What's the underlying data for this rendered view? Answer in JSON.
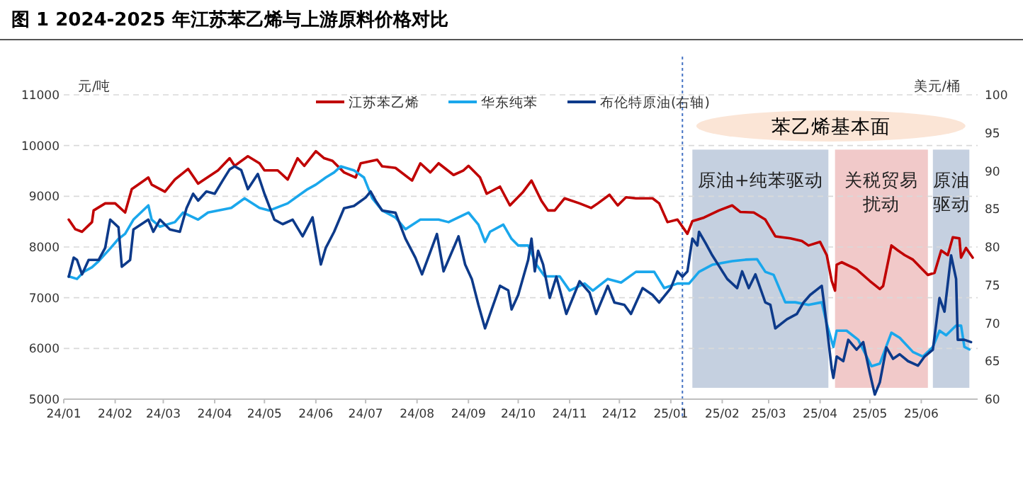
{
  "chart_data": {
    "type": "line",
    "title": "图 1 2024-2025 年江苏苯乙烯与上游原料价格对比",
    "ylabel": "元/吨",
    "y2label": "美元/桶",
    "xlim": [
      "2024-01-01",
      "2025-07-05"
    ],
    "xticks": [
      {
        "value": "2024-01",
        "label": "24/01"
      },
      {
        "value": "2024-02",
        "label": "24/02"
      },
      {
        "value": "2024-03",
        "label": "24/03"
      },
      {
        "value": "2024-04",
        "label": "24/04"
      },
      {
        "value": "2024-05",
        "label": "24/05"
      },
      {
        "value": "2024-06",
        "label": "24/06"
      },
      {
        "value": "2024-07",
        "label": "24/07"
      },
      {
        "value": "2024-08",
        "label": "24/08"
      },
      {
        "value": "2024-09",
        "label": "24/09"
      },
      {
        "value": "2024-10",
        "label": "24/10"
      },
      {
        "value": "2024-11",
        "label": "24/11"
      },
      {
        "value": "2024-12",
        "label": "24/12"
      },
      {
        "value": "2025-01",
        "label": "25/01"
      },
      {
        "value": "2025-02",
        "label": "25/02"
      },
      {
        "value": "2025-03",
        "label": "25/03"
      },
      {
        "value": "2025-04",
        "label": "25/04"
      },
      {
        "value": "2025-05",
        "label": "25/05"
      },
      {
        "value": "2025-06",
        "label": "25/06"
      }
    ],
    "ylim": [
      5000,
      11000
    ],
    "yticks": [
      5000,
      6000,
      7000,
      8000,
      9000,
      10000,
      11000
    ],
    "y2lim": [
      60,
      100
    ],
    "y2ticks": [
      60,
      65,
      70,
      75,
      80,
      85,
      90,
      95,
      100
    ],
    "grid": "y",
    "legend": "top",
    "line_style": "solid",
    "marker": "none",
    "annotations": [
      "苯乙烯基本面"
    ],
    "ref_lines": [
      {
        "axis": "x",
        "value": "2025-01-08",
        "label": null,
        "color": "#4472c4",
        "line_style": "dotted"
      }
    ],
    "bands": [
      {
        "axis": "x",
        "from": "2025-01-14",
        "to": "2025-04-06",
        "label": "原油+纯苯驱动",
        "color": "#c5d0e0"
      },
      {
        "axis": "x",
        "from": "2025-04-10",
        "to": "2025-06-05",
        "label": "关税贸易扰动",
        "color": "#f1c9c9"
      },
      {
        "axis": "x",
        "from": "2025-06-08",
        "to": "2025-06-30",
        "label": "原油驱动",
        "color": "#c5d0e0"
      }
    ],
    "series": [
      {
        "name": "江苏苯乙烯",
        "color": "#c00000",
        "x": [
          "2024-01-04",
          "2024-01-08",
          "2024-01-12",
          "2024-01-18",
          "2024-01-19",
          "2024-01-26",
          "2024-02-01",
          "2024-02-07",
          "2024-02-11",
          "2024-02-21",
          "2024-02-23",
          "2024-03-02",
          "2024-03-08",
          "2024-03-16",
          "2024-03-22",
          "2024-04-03",
          "2024-04-10",
          "2024-04-13",
          "2024-04-21",
          "2024-04-28",
          "2024-05-01",
          "2024-05-09",
          "2024-05-15",
          "2024-05-21",
          "2024-05-25",
          "2024-06-01",
          "2024-06-06",
          "2024-06-11",
          "2024-06-18",
          "2024-06-25",
          "2024-06-28",
          "2024-07-08",
          "2024-07-11",
          "2024-07-19",
          "2024-07-29",
          "2024-08-03",
          "2024-08-09",
          "2024-08-14",
          "2024-08-23",
          "2024-08-29",
          "2024-09-01",
          "2024-09-08",
          "2024-09-12",
          "2024-09-20",
          "2024-09-26",
          "2024-10-04",
          "2024-10-09",
          "2024-10-15",
          "2024-10-19",
          "2024-10-23",
          "2024-10-29",
          "2024-11-07",
          "2024-11-14",
          "2024-11-18",
          "2024-11-25",
          "2024-11-30",
          "2024-12-05",
          "2024-12-11",
          "2024-12-21",
          "2024-12-25",
          "2024-12-30",
          "2025-01-05",
          "2025-01-11",
          "2025-01-14",
          "2025-01-21",
          "2025-01-30",
          "2025-02-07",
          "2025-02-12",
          "2025-02-20",
          "2025-02-27",
          "2025-03-05",
          "2025-03-14",
          "2025-03-21",
          "2025-03-25",
          "2025-04-01",
          "2025-04-05",
          "2025-04-08",
          "2025-04-10",
          "2025-04-11",
          "2025-04-14",
          "2025-04-23",
          "2025-05-01",
          "2025-05-07",
          "2025-05-09",
          "2025-05-14",
          "2025-05-18",
          "2025-05-22",
          "2025-05-27",
          "2025-06-05",
          "2025-06-09",
          "2025-06-13",
          "2025-06-17",
          "2025-06-20",
          "2025-06-24",
          "2025-06-25",
          "2025-06-28",
          "2025-07-02"
        ],
        "values": [
          8540,
          8350,
          8300,
          8490,
          8720,
          8860,
          8860,
          8680,
          9140,
          9370,
          9230,
          9090,
          9330,
          9540,
          9250,
          9510,
          9750,
          9600,
          9790,
          9650,
          9510,
          9510,
          9330,
          9750,
          9600,
          9890,
          9750,
          9700,
          9470,
          9370,
          9650,
          9720,
          9590,
          9560,
          9310,
          9650,
          9470,
          9650,
          9420,
          9510,
          9600,
          9370,
          9050,
          9190,
          8820,
          9090,
          9310,
          8910,
          8720,
          8720,
          8960,
          8860,
          8770,
          8860,
          9030,
          8820,
          8980,
          8960,
          8960,
          8860,
          8490,
          8540,
          8260,
          8510,
          8580,
          8720,
          8820,
          8690,
          8680,
          8540,
          8210,
          8170,
          8120,
          8030,
          8100,
          7840,
          7330,
          7140,
          7650,
          7700,
          7560,
          7330,
          7170,
          7230,
          8030,
          7930,
          7840,
          7750,
          7450,
          7490,
          7930,
          7840,
          8190,
          8170,
          7790,
          7980,
          7790
        ]
      },
      {
        "name": "华东纯苯",
        "color": "#1aa7ec",
        "x": [
          "2024-01-04",
          "2024-01-09",
          "2024-01-13",
          "2024-01-18",
          "2024-01-22",
          "2024-01-29",
          "2024-02-03",
          "2024-02-07",
          "2024-02-12",
          "2024-02-21",
          "2024-02-23",
          "2024-02-28",
          "2024-03-08",
          "2024-03-13",
          "2024-03-22",
          "2024-03-28",
          "2024-04-11",
          "2024-04-19",
          "2024-04-28",
          "2024-05-04",
          "2024-05-15",
          "2024-05-21",
          "2024-05-27",
          "2024-06-01",
          "2024-06-07",
          "2024-06-12",
          "2024-06-16",
          "2024-06-24",
          "2024-06-30",
          "2024-07-05",
          "2024-07-11",
          "2024-07-19",
          "2024-07-25",
          "2024-08-03",
          "2024-08-14",
          "2024-08-20",
          "2024-09-01",
          "2024-09-07",
          "2024-09-11",
          "2024-09-14",
          "2024-09-22",
          "2024-09-27",
          "2024-10-01",
          "2024-10-07",
          "2024-10-12",
          "2024-10-17",
          "2024-10-26",
          "2024-11-01",
          "2024-11-10",
          "2024-11-15",
          "2024-11-24",
          "2024-12-02",
          "2024-12-11",
          "2024-12-22",
          "2024-12-28",
          "2025-01-05",
          "2025-01-12",
          "2025-01-18",
          "2025-01-26",
          "2025-02-07",
          "2025-02-15",
          "2025-02-22",
          "2025-02-27",
          "2025-03-04",
          "2025-03-11",
          "2025-03-17",
          "2025-03-25",
          "2025-04-02",
          "2025-04-05",
          "2025-04-09",
          "2025-04-11",
          "2025-04-17",
          "2025-04-24",
          "2025-05-02",
          "2025-05-07",
          "2025-05-14",
          "2025-05-19",
          "2025-05-27",
          "2025-06-02",
          "2025-06-08",
          "2025-06-12",
          "2025-06-16",
          "2025-06-22",
          "2025-06-25",
          "2025-06-27",
          "2025-06-30"
        ],
        "values": [
          7420,
          7370,
          7510,
          7600,
          7720,
          7970,
          8160,
          8260,
          8540,
          8820,
          8540,
          8400,
          8490,
          8680,
          8540,
          8680,
          8770,
          8960,
          8770,
          8720,
          8860,
          9000,
          9140,
          9230,
          9370,
          9470,
          9590,
          9510,
          9370,
          8960,
          8720,
          8580,
          8350,
          8540,
          8540,
          8490,
          8680,
          8440,
          8100,
          8300,
          8440,
          8160,
          8030,
          8030,
          7650,
          7420,
          7420,
          7140,
          7280,
          7140,
          7370,
          7300,
          7510,
          7510,
          7190,
          7280,
          7280,
          7510,
          7650,
          7720,
          7750,
          7760,
          7510,
          7450,
          6910,
          6910,
          6860,
          6910,
          6490,
          6030,
          6350,
          6350,
          6170,
          5650,
          5700,
          6310,
          6210,
          5930,
          5840,
          6030,
          6350,
          6260,
          6450,
          6450,
          6030,
          5980
        ]
      },
      {
        "name": "布伦特原油(右轴)",
        "color": "#0d3a8a",
        "axis": "y2",
        "x": [
          "2024-01-04",
          "2024-01-07",
          "2024-01-09",
          "2024-01-12",
          "2024-01-16",
          "2024-01-22",
          "2024-01-26",
          "2024-01-29",
          "2024-02-03",
          "2024-02-05",
          "2024-02-10",
          "2024-02-12",
          "2024-02-21",
          "2024-02-24",
          "2024-02-28",
          "2024-03-05",
          "2024-03-11",
          "2024-03-15",
          "2024-03-19",
          "2024-03-22",
          "2024-03-27",
          "2024-04-01",
          "2024-04-06",
          "2024-04-10",
          "2024-04-13",
          "2024-04-17",
          "2024-04-21",
          "2024-04-27",
          "2024-05-01",
          "2024-05-07",
          "2024-05-12",
          "2024-05-18",
          "2024-05-24",
          "2024-05-30",
          "2024-06-04",
          "2024-06-07",
          "2024-06-12",
          "2024-06-18",
          "2024-06-24",
          "2024-07-01",
          "2024-07-04",
          "2024-07-07",
          "2024-07-11",
          "2024-07-19",
          "2024-07-25",
          "2024-07-31",
          "2024-08-04",
          "2024-08-13",
          "2024-08-17",
          "2024-08-26",
          "2024-08-30",
          "2024-09-03",
          "2024-09-07",
          "2024-09-11",
          "2024-09-15",
          "2024-09-20",
          "2024-09-25",
          "2024-09-27",
          "2024-10-01",
          "2024-10-07",
          "2024-10-09",
          "2024-10-11",
          "2024-10-13",
          "2024-10-16",
          "2024-10-20",
          "2024-10-24",
          "2024-10-30",
          "2024-11-07",
          "2024-11-13",
          "2024-11-17",
          "2024-11-24",
          "2024-11-28",
          "2024-12-04",
          "2024-12-08",
          "2024-12-15",
          "2024-12-21",
          "2024-12-25",
          "2025-01-01",
          "2025-01-05",
          "2025-01-08",
          "2025-01-11",
          "2025-01-14",
          "2025-01-17",
          "2025-01-18",
          "2025-01-22",
          "2025-01-26",
          "2025-02-04",
          "2025-02-10",
          "2025-02-13",
          "2025-02-17",
          "2025-02-21",
          "2025-02-27",
          "2025-03-02",
          "2025-03-05",
          "2025-03-12",
          "2025-03-18",
          "2025-03-22",
          "2025-03-26",
          "2025-04-02",
          "2025-04-04",
          "2025-04-08",
          "2025-04-09",
          "2025-04-11",
          "2025-04-15",
          "2025-04-18",
          "2025-04-23",
          "2025-04-27",
          "2025-05-01",
          "2025-05-04",
          "2025-05-07",
          "2025-05-11",
          "2025-05-15",
          "2025-05-19",
          "2025-05-24",
          "2025-05-30",
          "2025-06-03",
          "2025-06-08",
          "2025-06-12",
          "2025-06-15",
          "2025-06-19",
          "2025-06-22",
          "2025-06-23",
          "2025-06-27",
          "2025-07-01"
        ],
        "values": [
          76.1,
          78.6,
          78.3,
          76.4,
          78.3,
          78.3,
          79.9,
          83.6,
          82.6,
          77.4,
          78.3,
          82.3,
          83.6,
          82.0,
          83.6,
          82.3,
          82.0,
          85.1,
          87.0,
          86.1,
          87.3,
          87.0,
          88.8,
          90.2,
          90.6,
          90.1,
          87.6,
          89.6,
          87.0,
          83.6,
          83.0,
          83.6,
          81.4,
          83.9,
          77.7,
          79.9,
          82.0,
          85.1,
          85.4,
          86.5,
          87.3,
          86.1,
          84.8,
          84.5,
          81.1,
          78.6,
          76.4,
          81.7,
          76.8,
          81.4,
          77.7,
          75.8,
          72.4,
          69.3,
          71.8,
          74.9,
          74.3,
          71.8,
          73.7,
          78.3,
          81.1,
          76.8,
          79.5,
          77.7,
          73.3,
          76.1,
          71.2,
          75.5,
          74.0,
          71.2,
          74.9,
          72.7,
          72.4,
          71.2,
          74.6,
          73.7,
          72.7,
          74.6,
          76.8,
          76.1,
          76.8,
          81.1,
          80.2,
          82.0,
          80.5,
          78.9,
          75.8,
          74.6,
          76.8,
          74.6,
          76.4,
          72.7,
          72.4,
          69.3,
          70.5,
          71.2,
          72.7,
          73.7,
          74.9,
          71.5,
          64.0,
          62.8,
          65.6,
          65.0,
          67.8,
          66.5,
          67.5,
          63.4,
          60.6,
          62.2,
          66.8,
          65.3,
          65.9,
          65.0,
          64.4,
          65.6,
          66.5,
          73.3,
          71.5,
          78.9,
          75.8,
          67.8,
          67.8,
          67.5
        ]
      }
    ]
  }
}
